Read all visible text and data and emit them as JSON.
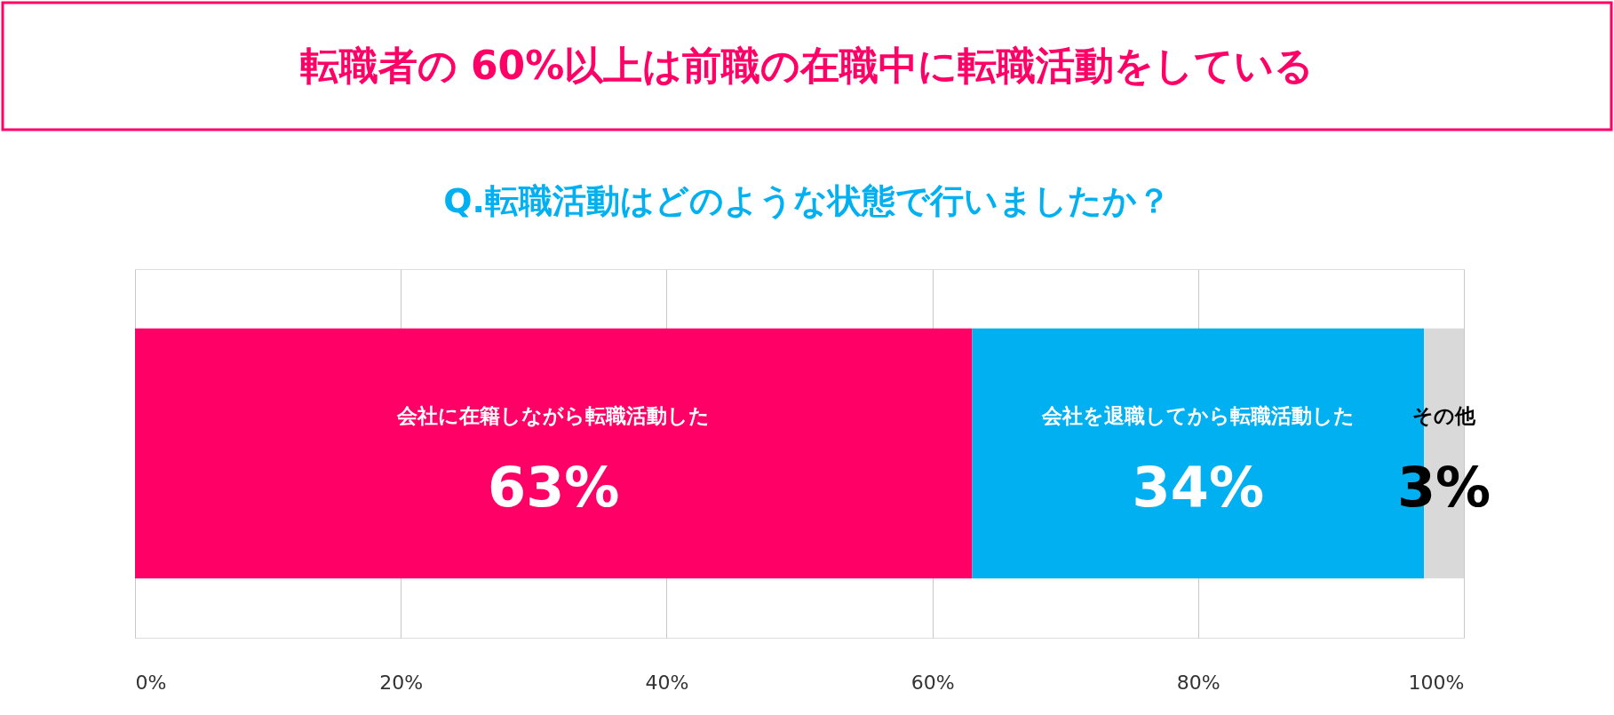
{
  "chart_data": {
    "type": "bar",
    "orientation": "horizontal",
    "stacked": true,
    "title": "転職者の 60%以上は前職の在職中に転職活動をしている",
    "subtitle": "Q.転職活動はどのような状態で行いましたか？",
    "categories": [
      null
    ],
    "series": [
      {
        "name": "会社に在籍しながら転職活動した",
        "color": "#ff0066",
        "values": [
          63
        ],
        "value_labels": [
          "63%"
        ]
      },
      {
        "name": "会社を退職してから転職活動した",
        "color": "#00b0f0",
        "values": [
          34
        ],
        "value_labels": [
          "34%"
        ]
      },
      {
        "name": "その他",
        "color": "#d9d9d9",
        "values": [
          3
        ],
        "value_labels": [
          "3%"
        ]
      }
    ],
    "xlim": [
      0,
      100
    ],
    "xticks": [
      {
        "value": 0,
        "label": "0%"
      },
      {
        "value": 20,
        "label": "20%"
      },
      {
        "value": 40,
        "label": "40%"
      },
      {
        "value": 60,
        "label": "60%"
      },
      {
        "value": 80,
        "label": "80%"
      },
      {
        "value": 100,
        "label": "100%"
      }
    ],
    "grid": "x",
    "legend": false
  }
}
